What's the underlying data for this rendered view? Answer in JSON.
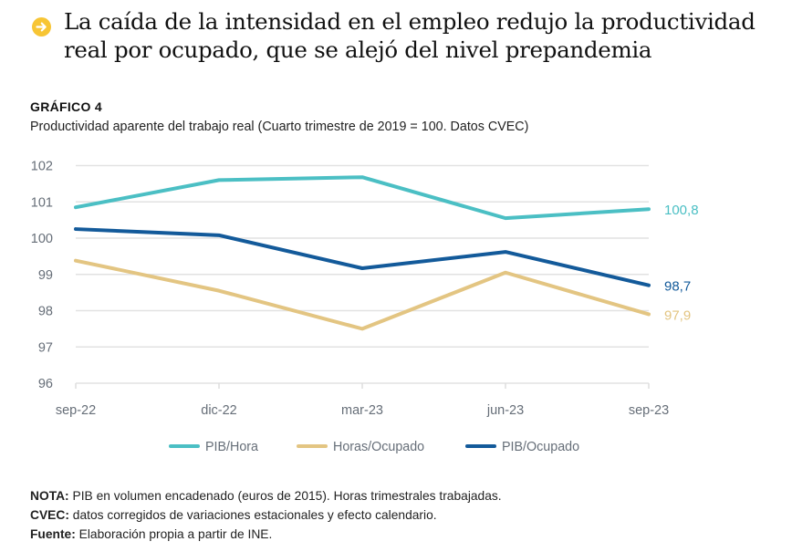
{
  "header": {
    "icon": "arrow-right-circle-icon",
    "icon_color": "#F7C534",
    "title": "La caída de la intensidad en el empleo redujo la productividad real por ocupado, que se alejó del nivel prepandemia"
  },
  "chart_label": "GRÁFICO 4",
  "chart_subtitle": "Productividad aparente del trabajo real (Cuarto trimestre de 2019 = 100. Datos CVEC)",
  "chart_data": {
    "type": "line",
    "title": "Productividad aparente del trabajo real (Cuarto trimestre de 2019 = 100. Datos CVEC)",
    "xlabel": "",
    "ylabel": "",
    "categories": [
      "sep-22",
      "dic-22",
      "mar-23",
      "jun-23",
      "sep-23"
    ],
    "ylim": [
      96,
      102
    ],
    "yticks": [
      96,
      97,
      98,
      99,
      100,
      101,
      102
    ],
    "grid": true,
    "legend_position": "bottom",
    "series": [
      {
        "name": "PIB/Hora",
        "color": "#4BBFC4",
        "values": [
          100.85,
          101.6,
          101.68,
          100.55,
          100.8
        ],
        "end_label": "100,8"
      },
      {
        "name": "Horas/Ocupado",
        "color": "#E3C582",
        "values": [
          99.38,
          98.55,
          97.5,
          99.05,
          97.9
        ],
        "end_label": "97,9"
      },
      {
        "name": "PIB/Ocupado",
        "color": "#135A9A",
        "values": [
          100.25,
          100.08,
          99.17,
          99.62,
          98.7
        ],
        "end_label": "98,7"
      }
    ]
  },
  "notes": [
    {
      "label": "NOTA:",
      "text": " PIB en volumen encadenado (euros de 2015). Horas trimestrales trabajadas."
    },
    {
      "label": "CVEC:",
      "text": " datos corregidos de variaciones estacionales y efecto calendario."
    },
    {
      "label": "Fuente:",
      "text": " Elaboración propia a partir de INE."
    }
  ]
}
